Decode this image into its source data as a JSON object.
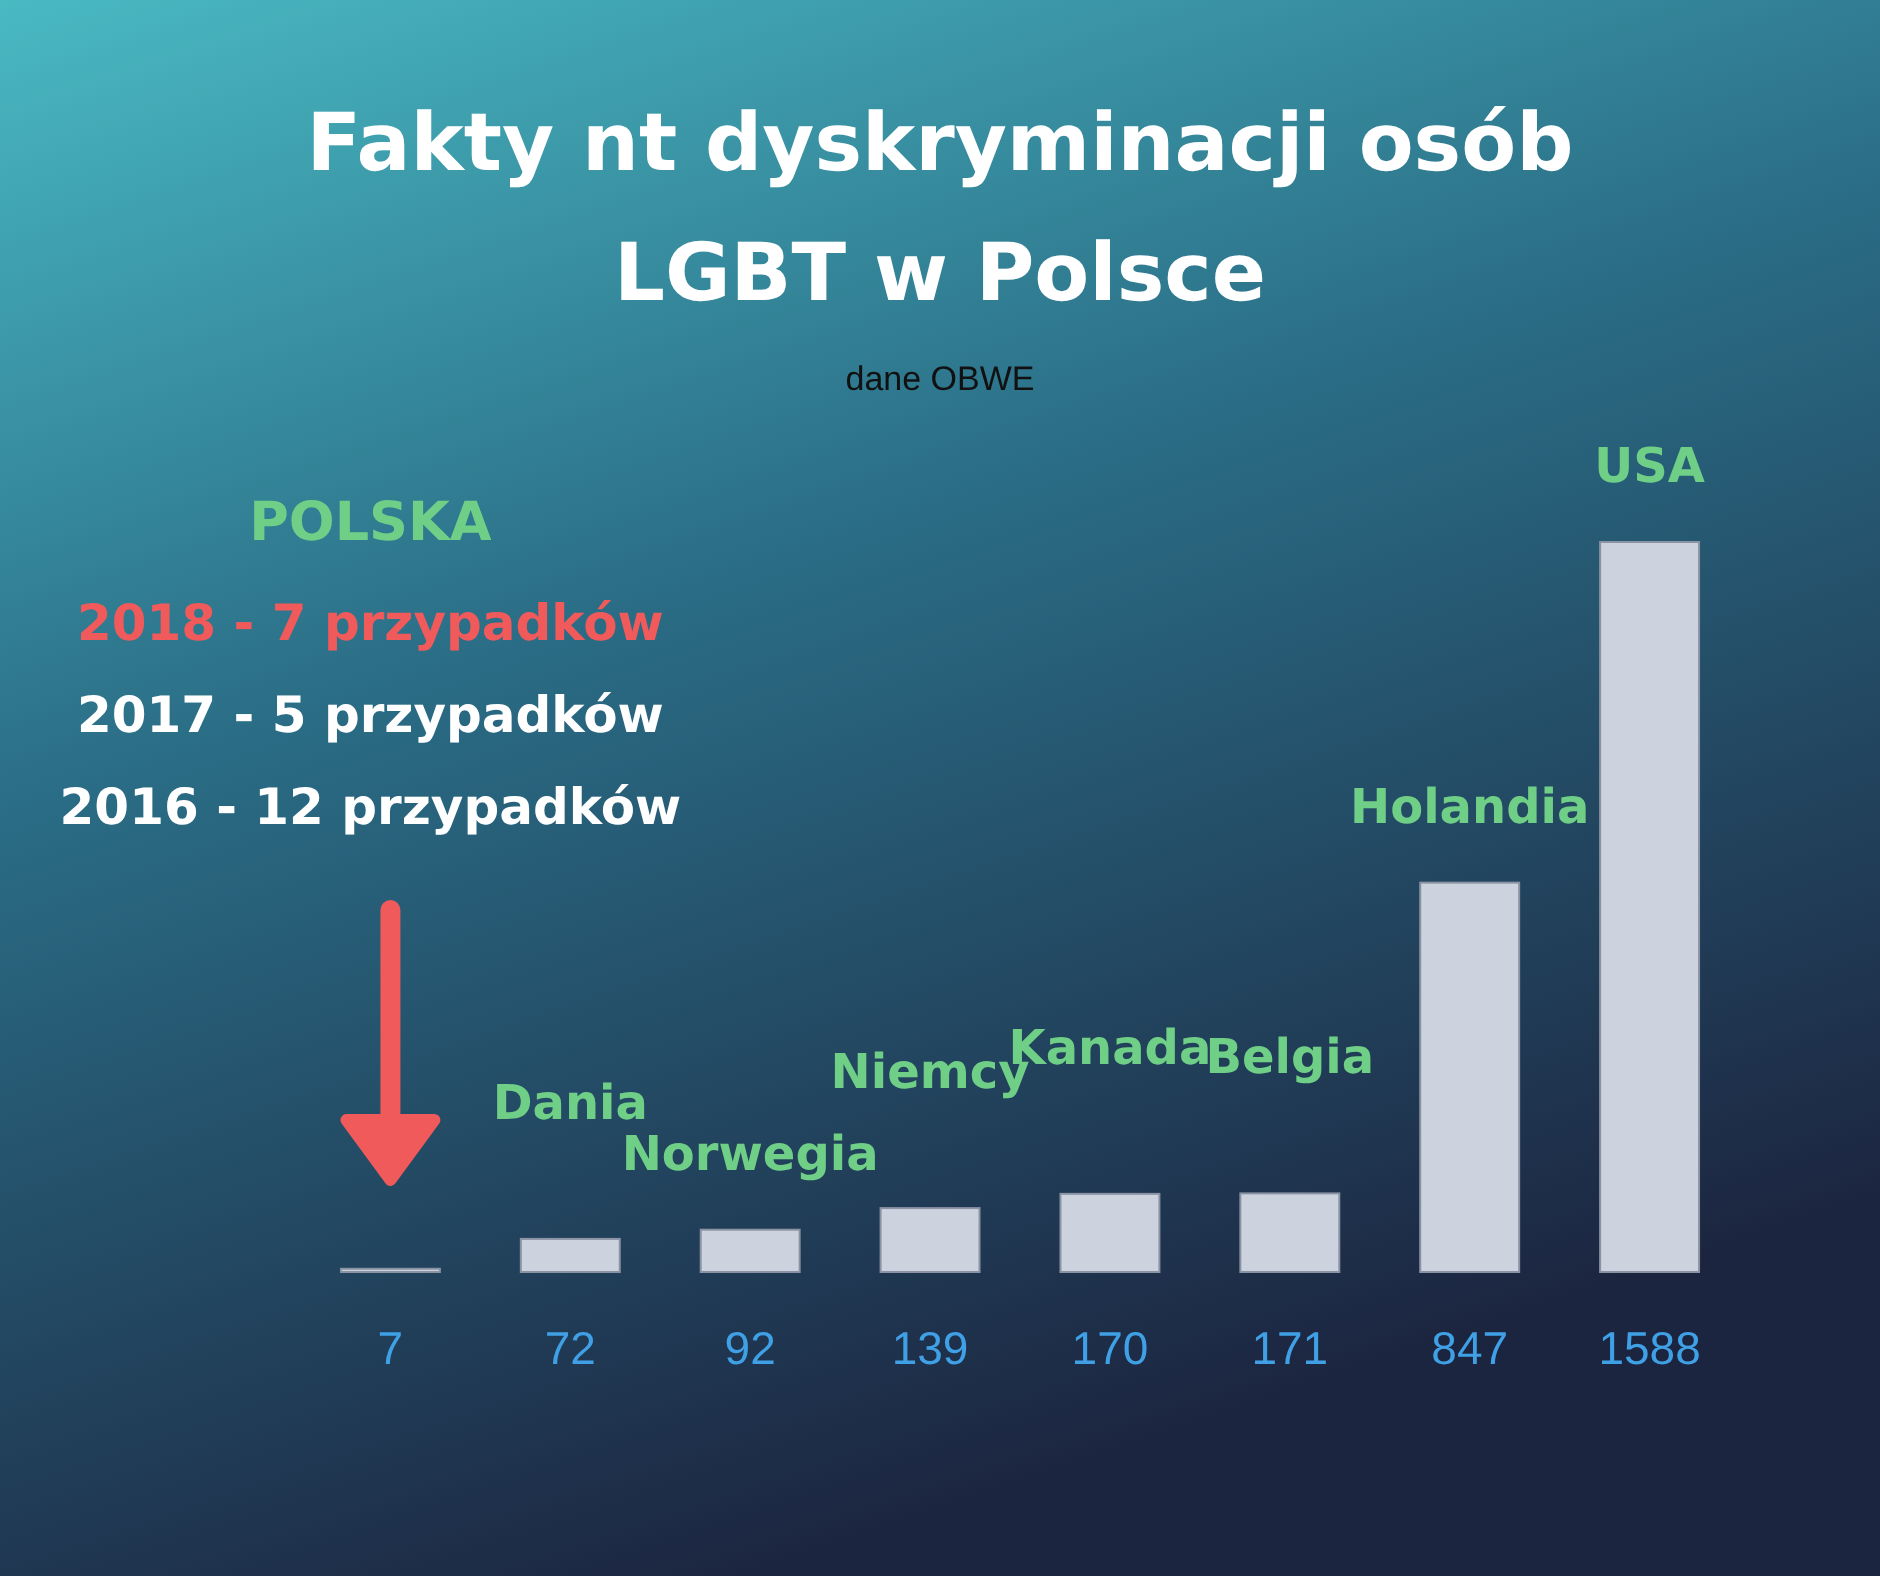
{
  "chart_data": {
    "type": "bar",
    "title": "Fakty nt dyskryminacji osób LGBT w Polsce",
    "subtitle": "dane OBWE",
    "categories": [
      "POLSKA",
      "Dania",
      "Norwegia",
      "Niemcy",
      "Kanada",
      "Belgia",
      "Holandia",
      "USA"
    ],
    "values": [
      7,
      72,
      92,
      139,
      170,
      171,
      847,
      1588
    ],
    "color": "#cdd3de",
    "data_labels": true,
    "annotations": [
      "2018 - 7 przypadków",
      "2017 - 5 przypadków",
      "2016 - 12 przypadków"
    ]
  }
}
